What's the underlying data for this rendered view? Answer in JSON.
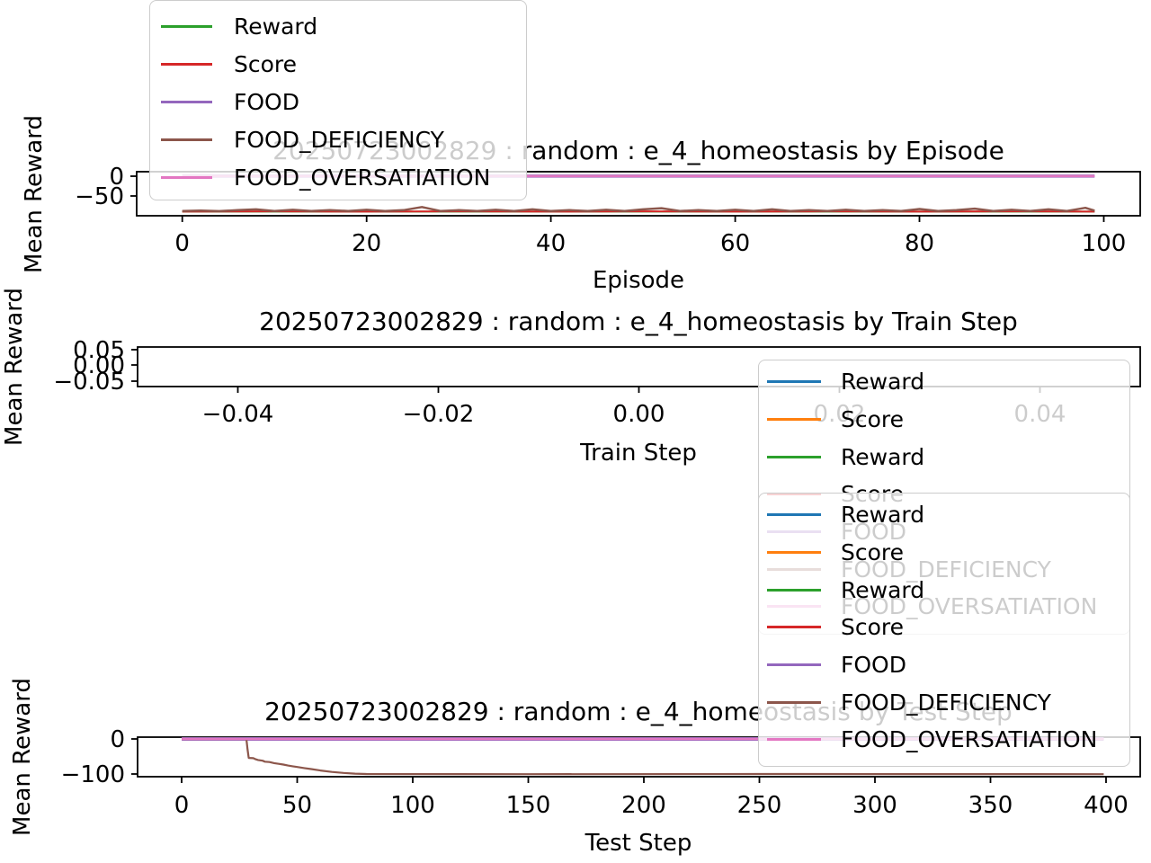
{
  "figure": {
    "background": "#ffffff",
    "text_color": "#000000",
    "faded_text_color": "#cccccc"
  },
  "legends": {
    "episode": {
      "items": [
        {
          "label": "Reward",
          "color": "#2ca02c"
        },
        {
          "label": "Score",
          "color": "#d62728"
        },
        {
          "label": "FOOD",
          "color": "#9467bd"
        },
        {
          "label": "FOOD_DEFICIENCY",
          "color": "#8c564b"
        },
        {
          "label": "FOOD_OVERSATIATION",
          "color": "#e377c2"
        }
      ]
    },
    "overlay_a": {
      "items": [
        {
          "label": "Reward",
          "color": "#1f77b4"
        },
        {
          "label": "Score",
          "color": "#ff7f0e"
        },
        {
          "label": "Reward",
          "color": "#2ca02c"
        },
        {
          "label": "Score",
          "color": "#d62728"
        },
        {
          "label": "FOOD",
          "color": "#9467bd"
        },
        {
          "label": "FOOD_DEFICIENCY",
          "color": "#8c564b"
        },
        {
          "label": "FOOD_OVERSATIATION",
          "color": "#e377c2"
        }
      ]
    },
    "overlay_b": {
      "items": [
        {
          "label": "Reward",
          "color": "#1f77b4"
        },
        {
          "label": "Score",
          "color": "#ff7f0e"
        },
        {
          "label": "Reward",
          "color": "#2ca02c"
        },
        {
          "label": "Score",
          "color": "#d62728"
        },
        {
          "label": "FOOD",
          "color": "#9467bd"
        },
        {
          "label": "FOOD_DEFICIENCY",
          "color": "#8c564b"
        },
        {
          "label": "FOOD_OVERSATIATION",
          "color": "#e377c2"
        }
      ]
    }
  },
  "chart_data": [
    {
      "type": "line",
      "title": "20250723002829 : random : e_4_homeostasis by Episode",
      "xlabel": "Episode",
      "ylabel": "Mean Reward",
      "xlim": [
        -4.95,
        103.95
      ],
      "ylim": [
        -100,
        11
      ],
      "xticks": [
        0,
        20,
        40,
        60,
        80,
        100
      ],
      "xtick_labels": [
        "0",
        "20",
        "40",
        "60",
        "80",
        "100"
      ],
      "yticks": [
        0,
        -50
      ],
      "ytick_labels": [
        "0",
        "−50"
      ],
      "grid": false,
      "legend_labels": [
        "Reward",
        "Score",
        "FOOD",
        "FOOD_DEFICIENCY",
        "FOOD_OVERSATIATION"
      ],
      "legend_position": "upper left",
      "series": [
        {
          "name": "Reward",
          "color": "#2ca02c",
          "width": 2,
          "points": [
            [
              0,
              -89.5
            ],
            [
              99,
              -89.5
            ]
          ]
        },
        {
          "name": "Score",
          "color": "#d62728",
          "width": 2,
          "points": [
            [
              0,
              -89.5
            ],
            [
              10,
              -89
            ],
            [
              20,
              -89.5
            ],
            [
              30,
              -89
            ],
            [
              40,
              -89.5
            ],
            [
              50,
              -89
            ],
            [
              60,
              -89.5
            ],
            [
              70,
              -89
            ],
            [
              80,
              -89.5
            ],
            [
              90,
              -89
            ],
            [
              99,
              -89.5
            ]
          ]
        },
        {
          "name": "FOOD",
          "color": "#9467bd",
          "width": 3.5,
          "points": [
            [
              0,
              0
            ],
            [
              99,
              0
            ]
          ]
        },
        {
          "name": "FOOD_DEFICIENCY",
          "color": "#8c564b",
          "width": 2.5,
          "points": [
            [
              0,
              -88
            ],
            [
              2,
              -87
            ],
            [
              4,
              -88.5
            ],
            [
              6,
              -86
            ],
            [
              8,
              -84
            ],
            [
              10,
              -88
            ],
            [
              12,
              -85
            ],
            [
              14,
              -88
            ],
            [
              16,
              -86
            ],
            [
              18,
              -88
            ],
            [
              20,
              -85
            ],
            [
              22,
              -88
            ],
            [
              24,
              -86
            ],
            [
              26,
              -78
            ],
            [
              28,
              -88
            ],
            [
              30,
              -86
            ],
            [
              32,
              -88
            ],
            [
              34,
              -85
            ],
            [
              36,
              -88
            ],
            [
              38,
              -84
            ],
            [
              40,
              -88
            ],
            [
              42,
              -86
            ],
            [
              44,
              -88
            ],
            [
              46,
              -85
            ],
            [
              48,
              -88
            ],
            [
              50,
              -84
            ],
            [
              52,
              -81
            ],
            [
              54,
              -88
            ],
            [
              56,
              -86
            ],
            [
              58,
              -88
            ],
            [
              60,
              -85
            ],
            [
              62,
              -88
            ],
            [
              64,
              -84
            ],
            [
              66,
              -88
            ],
            [
              68,
              -86
            ],
            [
              70,
              -88
            ],
            [
              72,
              -85
            ],
            [
              74,
              -88
            ],
            [
              76,
              -86
            ],
            [
              78,
              -88
            ],
            [
              80,
              -83
            ],
            [
              82,
              -88
            ],
            [
              84,
              -86
            ],
            [
              86,
              -82
            ],
            [
              88,
              -88
            ],
            [
              90,
              -85
            ],
            [
              92,
              -88
            ],
            [
              94,
              -84
            ],
            [
              96,
              -88
            ],
            [
              98,
              -80
            ],
            [
              99,
              -87
            ]
          ]
        },
        {
          "name": "FOOD_OVERSATIATION",
          "color": "#e377c2",
          "width": 2.5,
          "points": [
            [
              0,
              0
            ],
            [
              99,
              0
            ]
          ]
        }
      ]
    },
    {
      "type": "line",
      "title": "20250723002829 : random : e_4_homeostasis by Train Step",
      "xlabel": "Train Step",
      "ylabel": "Mean Reward",
      "xlim": [
        -0.05,
        0.05
      ],
      "ylim": [
        -0.055,
        0.055
      ],
      "xticks": [
        -0.04,
        -0.02,
        0.0,
        0.02,
        0.04
      ],
      "xtick_labels": [
        "−0.04",
        "−0.02",
        "0.00",
        "0.02",
        "0.04"
      ],
      "yticks": [
        0.05,
        0.0,
        -0.05
      ],
      "ytick_labels": [
        "0.05",
        "0.00",
        "−0.05"
      ],
      "grid": false,
      "legend_labels": [
        "Reward",
        "Score",
        "Reward",
        "Score",
        "FOOD",
        "FOOD_DEFICIENCY",
        "FOOD_OVERSATIATION"
      ],
      "legend_position": "center right overlay",
      "series": []
    },
    {
      "type": "line",
      "title": "20250723002829 : random : e_4_homeostasis by Test Step",
      "xlabel": "Test Step",
      "ylabel": "Mean Reward",
      "xlim": [
        -19.1,
        414.8
      ],
      "ylim": [
        -107.7,
        5.1
      ],
      "xticks": [
        0,
        50,
        100,
        150,
        200,
        250,
        300,
        350,
        400
      ],
      "xtick_labels": [
        "0",
        "50",
        "100",
        "150",
        "200",
        "250",
        "300",
        "350",
        "400"
      ],
      "yticks": [
        0,
        -100
      ],
      "ytick_labels": [
        "0",
        "−100"
      ],
      "grid": false,
      "legend_labels": [
        "Reward",
        "Score",
        "Reward",
        "Score",
        "FOOD",
        "FOOD_DEFICIENCY",
        "FOOD_OVERSATIATION"
      ],
      "legend_position": "upper right overlay",
      "series": [
        {
          "name": "Reward",
          "color": "#1f77b4",
          "width": 2,
          "points": [
            [
              0,
              0
            ],
            [
              399,
              0
            ]
          ]
        },
        {
          "name": "Score",
          "color": "#ff7f0e",
          "width": 2,
          "points": [
            [
              0,
              0
            ],
            [
              399,
              0
            ]
          ]
        },
        {
          "name": "Reward",
          "color": "#2ca02c",
          "width": 2,
          "points": [
            [
              0,
              0
            ],
            [
              399,
              0
            ]
          ]
        },
        {
          "name": "Score",
          "color": "#d62728",
          "width": 2,
          "points": [
            [
              0,
              0
            ],
            [
              399,
              0
            ]
          ]
        },
        {
          "name": "FOOD",
          "color": "#9467bd",
          "width": 4,
          "points": [
            [
              0,
              0
            ],
            [
              399,
              0
            ]
          ]
        },
        {
          "name": "FOOD_DEFICIENCY",
          "color": "#8c564b",
          "width": 2.2,
          "points": [
            [
              0,
              0
            ],
            [
              28,
              0
            ],
            [
              28.5,
              -30
            ],
            [
              29,
              -54
            ],
            [
              31,
              -55
            ],
            [
              32,
              -58
            ],
            [
              33,
              -60
            ],
            [
              35,
              -62
            ],
            [
              36,
              -65
            ],
            [
              38,
              -66
            ],
            [
              40,
              -69
            ],
            [
              42,
              -71
            ],
            [
              44,
              -73
            ],
            [
              46,
              -76
            ],
            [
              48,
              -78
            ],
            [
              50,
              -80
            ],
            [
              53,
              -83
            ],
            [
              56,
              -86
            ],
            [
              60,
              -90
            ],
            [
              65,
              -94
            ],
            [
              70,
              -97
            ],
            [
              75,
              -99
            ],
            [
              80,
              -100
            ],
            [
              150,
              -100.5
            ],
            [
              250,
              -100
            ],
            [
              399,
              -100.5
            ]
          ]
        },
        {
          "name": "FOOD_OVERSATIATION",
          "color": "#e377c2",
          "width": 2.5,
          "points": [
            [
              0,
              0
            ],
            [
              399,
              0
            ]
          ]
        }
      ]
    }
  ]
}
